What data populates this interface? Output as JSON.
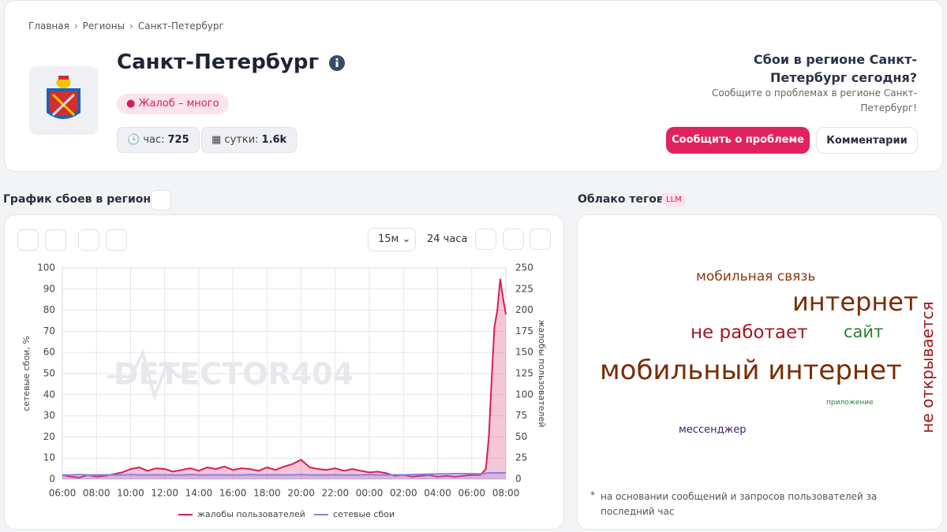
{
  "breadcrumbs": [
    "Главная",
    "Регионы",
    "Санкт-Петербург"
  ],
  "header": {
    "title": "Санкт-Петербург",
    "badge": "Жалоб – много",
    "stats": [
      {
        "label": "час:",
        "value": "725"
      },
      {
        "label": "сутки:",
        "value": "1.6k"
      }
    ],
    "cta_title": "Сбои в регионе Санкт-Петербург сегодня?",
    "cta_text": "Сообщите о проблемах в регионе Санкт-Петербург!",
    "report_button": "Сообщить о проблеме",
    "comments_button": "Комментарии"
  },
  "chart_section": {
    "title": "График сбоев в регионе",
    "interval": "15м",
    "period": "24 часа"
  },
  "cloud_section": {
    "title": "Облако тегов",
    "tag": "LLM",
    "words": [
      "мобильная связь",
      "интернет",
      "не работает",
      "сайт",
      "мобильный интернет",
      "не открывается",
      "приложение",
      "мессенджер"
    ],
    "note_mark": "*",
    "note": "на основании сообщений и запросов пользователей за последний час"
  },
  "chart_data": {
    "type": "line",
    "watermark": "DETECTOR404",
    "y_label": "сетевые сбои, %",
    "y2_label": "жалобы пользователей",
    "x": [
      0,
      0.5,
      1,
      1.5,
      2,
      2.5,
      3,
      3.5,
      4,
      4.5,
      5,
      5.5,
      6,
      6.5,
      7,
      7.5,
      8,
      8.5,
      9,
      9.5,
      10,
      10.5,
      11,
      11.5,
      12,
      12.5,
      13,
      13.5,
      14,
      14.5,
      15,
      15.5,
      16,
      16.5,
      17,
      17.5,
      18,
      18.5,
      19,
      19.5,
      20,
      20.5,
      21,
      21.5,
      22,
      22.5,
      23,
      23.5,
      24,
      24.5,
      24.83,
      25,
      25.17,
      25.33,
      25.5,
      25.67,
      25.83,
      26
    ],
    "xlim": [
      0,
      26
    ],
    "xticks": [
      {
        "value": 0,
        "label": "06:00"
      },
      {
        "value": 2,
        "label": "08:00"
      },
      {
        "value": 4,
        "label": "10:00"
      },
      {
        "value": 6,
        "label": "12:00"
      },
      {
        "value": 8,
        "label": "14:00"
      },
      {
        "value": 10,
        "label": "16:00"
      },
      {
        "value": 12,
        "label": "18:00"
      },
      {
        "value": 14,
        "label": "20:00"
      },
      {
        "value": 16,
        "label": "22:00"
      },
      {
        "value": 18,
        "label": "00:00"
      },
      {
        "value": 20,
        "label": "02:00"
      },
      {
        "value": 22,
        "label": "04:00"
      },
      {
        "value": 24,
        "label": "06:00"
      },
      {
        "value": 26,
        "label": "08:00"
      }
    ],
    "ylim": [
      0,
      100
    ],
    "yticks": [
      0,
      10,
      20,
      30,
      40,
      50,
      60,
      70,
      80,
      90,
      100
    ],
    "y2lim": [
      0,
      250
    ],
    "y2ticks": [
      0,
      25,
      50,
      75,
      100,
      125,
      150,
      175,
      200,
      225,
      250
    ],
    "grid": true,
    "legend": "bottom",
    "series": [
      {
        "name": "жалобы пользователей",
        "color": "#d81b60",
        "axis": "y2",
        "values": [
          5,
          3,
          2,
          5,
          3,
          4,
          6,
          8,
          12,
          14,
          10,
          13,
          12,
          9,
          11,
          13,
          10,
          14,
          12,
          15,
          11,
          13,
          12,
          10,
          14,
          11,
          15,
          18,
          23,
          14,
          12,
          11,
          13,
          10,
          12,
          10,
          8,
          9,
          7,
          4,
          5,
          3,
          4,
          5,
          3,
          4,
          3,
          4,
          5,
          5,
          12,
          50,
          120,
          180,
          200,
          237,
          215,
          195
        ]
      },
      {
        "name": "сетевые сбои",
        "color": "#8b7fe8",
        "axis": "y",
        "values": [
          2,
          2,
          2.2,
          2,
          2,
          2.1,
          2,
          2,
          2.2,
          2,
          2,
          2.1,
          2,
          2,
          2,
          2.2,
          2,
          2,
          2.1,
          2,
          2,
          2,
          2.2,
          2,
          2,
          2.1,
          2,
          2,
          2.2,
          2,
          2,
          2,
          2.1,
          2,
          2,
          2,
          2.2,
          2,
          2,
          2.1,
          2,
          2.2,
          2.3,
          2.4,
          2.5,
          2.5,
          2.6,
          2.6,
          2.6,
          2.5,
          2.8,
          3,
          3,
          3,
          3,
          3,
          3,
          3
        ]
      }
    ]
  }
}
